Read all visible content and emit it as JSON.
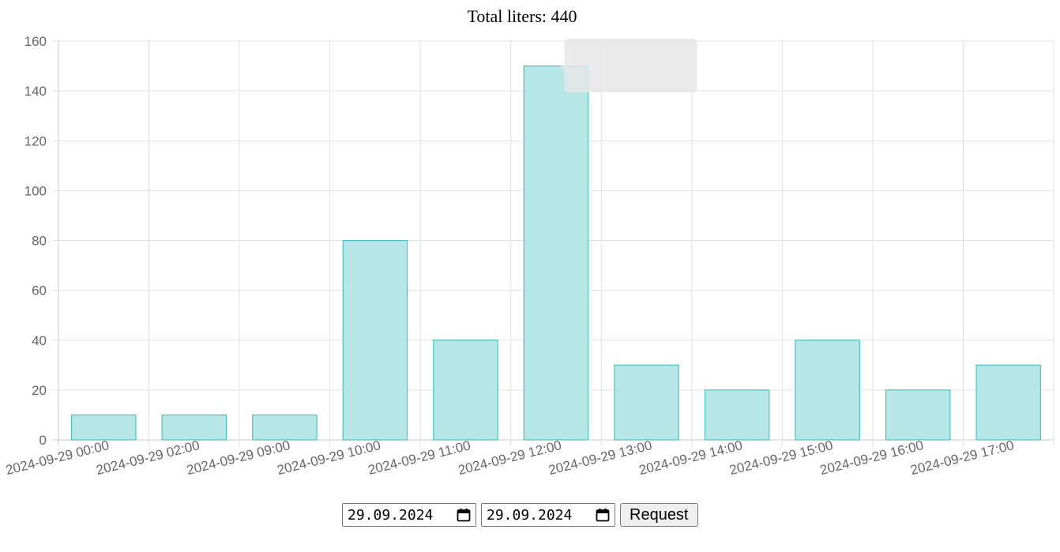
{
  "header": {
    "total_text": "Total liters: 440"
  },
  "chart_data": {
    "type": "bar",
    "title": "Total liters: 440",
    "categories": [
      "2024-09-29 00:00",
      "2024-09-29 02:00",
      "2024-09-29 09:00",
      "2024-09-29 10:00",
      "2024-09-29 11:00",
      "2024-09-29 12:00",
      "2024-09-29 13:00",
      "2024-09-29 14:00",
      "2024-09-29 15:00",
      "2024-09-29 16:00",
      "2024-09-29 17:00"
    ],
    "values": [
      10,
      10,
      10,
      80,
      40,
      150,
      30,
      20,
      40,
      20,
      30
    ],
    "ylim": [
      0,
      160
    ],
    "yticks": [
      0,
      20,
      40,
      60,
      80,
      100,
      120,
      140,
      160
    ],
    "grid": true,
    "bar_fill": "#b6e6e5",
    "bar_stroke": "#4bc0c0",
    "tooltip_visible": true
  },
  "controls": {
    "date_from": "29.09.2024",
    "date_to": "29.09.2024",
    "request_label": "Request"
  }
}
